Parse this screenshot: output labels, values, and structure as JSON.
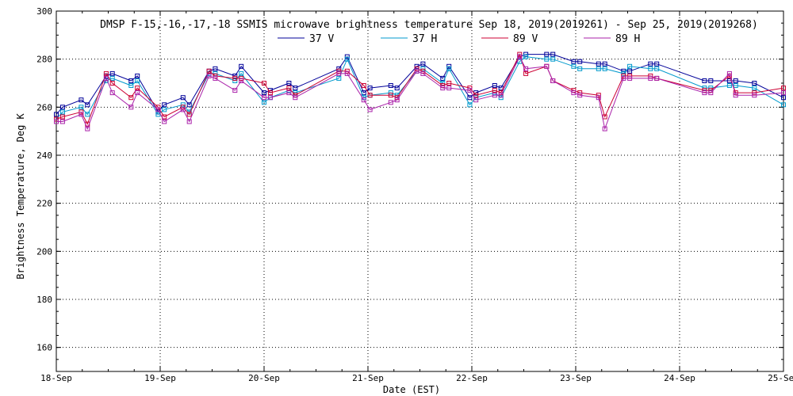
{
  "chart_data": {
    "type": "line",
    "title": "DMSP F-15,-16,-17,-18 SSMIS microwave brightness temperature Sep 18, 2019(2019261) - Sep 25, 2019(2019268)",
    "xlabel": "Date (EST)",
    "ylabel": "Brightness Temperature, Deg K",
    "ylim": [
      150,
      300
    ],
    "xlim": [
      0,
      7
    ],
    "yticks": [
      160,
      180,
      200,
      220,
      240,
      260,
      280,
      300
    ],
    "xticks": [
      {
        "value": 0,
        "label": "18-Sep"
      },
      {
        "value": 1,
        "label": "19-Sep"
      },
      {
        "value": 2,
        "label": "20-Sep"
      },
      {
        "value": 3,
        "label": "21-Sep"
      },
      {
        "value": 4,
        "label": "22-Sep"
      },
      {
        "value": 5,
        "label": "23-Sep"
      },
      {
        "value": 6,
        "label": "24-Sep"
      },
      {
        "value": 7,
        "label": "25-Sep"
      }
    ],
    "grid": true,
    "legend_position": "top-center",
    "x": [
      0.0,
      0.06,
      0.24,
      0.3,
      0.48,
      0.54,
      0.72,
      0.78,
      0.98,
      1.04,
      1.22,
      1.28,
      1.47,
      1.53,
      1.72,
      1.78,
      2.0,
      2.06,
      2.24,
      2.3,
      2.72,
      2.8,
      2.96,
      3.02,
      3.22,
      3.28,
      3.47,
      3.53,
      3.72,
      3.78,
      3.98,
      4.04,
      4.22,
      4.28,
      4.46,
      4.52,
      4.72,
      4.78,
      4.98,
      5.04,
      5.22,
      5.28,
      5.46,
      5.52,
      5.72,
      5.78,
      6.24,
      6.3,
      6.48,
      6.54,
      6.72,
      7.0
    ],
    "series": [
      {
        "name": "37 V",
        "color": "#000099",
        "values": [
          257,
          260,
          263,
          261,
          273,
          274,
          271,
          273,
          258,
          261,
          264,
          261,
          275,
          276,
          273,
          277,
          266,
          267,
          270,
          268,
          276,
          281,
          266,
          268,
          269,
          268,
          277,
          278,
          272,
          277,
          264,
          266,
          269,
          268,
          281,
          282,
          282,
          282,
          279,
          279,
          278,
          278,
          275,
          275,
          278,
          278,
          271,
          271,
          271,
          271,
          270,
          264
        ]
      },
      {
        "name": "37 H",
        "color": "#0099cc",
        "values": [
          255,
          258,
          260,
          257,
          271,
          272,
          269,
          271,
          257,
          259,
          261,
          258,
          274,
          274,
          271,
          274,
          262,
          264,
          267,
          266,
          272,
          280,
          264,
          265,
          266,
          265,
          275,
          276,
          270,
          276,
          261,
          264,
          266,
          264,
          279,
          281,
          280,
          280,
          277,
          276,
          276,
          276,
          274,
          277,
          276,
          276,
          268,
          268,
          269,
          269,
          268,
          261
        ]
      },
      {
        "name": "89 V",
        "color": "#cc0033",
        "values": [
          255,
          256,
          258,
          253,
          274,
          270,
          264,
          268,
          260,
          256,
          260,
          257,
          275,
          273,
          272,
          272,
          270,
          266,
          268,
          265,
          275,
          275,
          269,
          265,
          265,
          264,
          276,
          275,
          269,
          270,
          268,
          265,
          267,
          266,
          282,
          274,
          277,
          271,
          267,
          266,
          265,
          256,
          273,
          273,
          273,
          272,
          267,
          267,
          273,
          266,
          266,
          268
        ]
      },
      {
        "name": "89 H",
        "color": "#aa22aa",
        "values": [
          254,
          254,
          257,
          251,
          272,
          266,
          260,
          266,
          259,
          254,
          259,
          254,
          273,
          272,
          267,
          271,
          264,
          264,
          266,
          264,
          274,
          274,
          263,
          259,
          262,
          263,
          275,
          274,
          268,
          268,
          267,
          263,
          265,
          265,
          281,
          276,
          277,
          271,
          266,
          265,
          264,
          251,
          272,
          272,
          272,
          272,
          266,
          266,
          274,
          265,
          265,
          266
        ]
      }
    ]
  }
}
